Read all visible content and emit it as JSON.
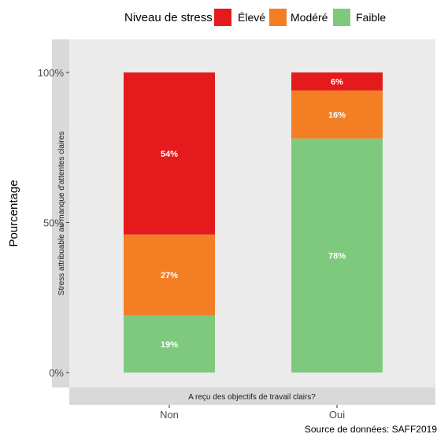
{
  "chart_data": {
    "type": "bar",
    "stacked": true,
    "legend_title": "Niveau de stress",
    "legend_position": "top",
    "categories": [
      "Non",
      "Oui"
    ],
    "series": [
      {
        "name": "Élevé",
        "color": "#e41a1c",
        "values": [
          54,
          6
        ],
        "labels": [
          "54%",
          "6%"
        ]
      },
      {
        "name": "Modéré",
        "color": "#f47e24",
        "values": [
          27,
          16
        ],
        "labels": [
          "27%",
          "16%"
        ]
      },
      {
        "name": "Faible",
        "color": "#7fc97f",
        "values": [
          19,
          78
        ],
        "labels": [
          "19%",
          "78%"
        ]
      }
    ],
    "ylabel": "Pourcentage",
    "y_ticks": [
      0,
      50,
      100
    ],
    "y_tick_labels": [
      "0%",
      "50%",
      "100%"
    ],
    "ylim": [
      0,
      100
    ],
    "facet_strip_left": "Stress attribuable au manque d'attentes claires",
    "facet_strip_bottom": "A reçu des objectifs de travail clairs?",
    "caption": "Source de données: SAFF2019",
    "grid": false
  }
}
